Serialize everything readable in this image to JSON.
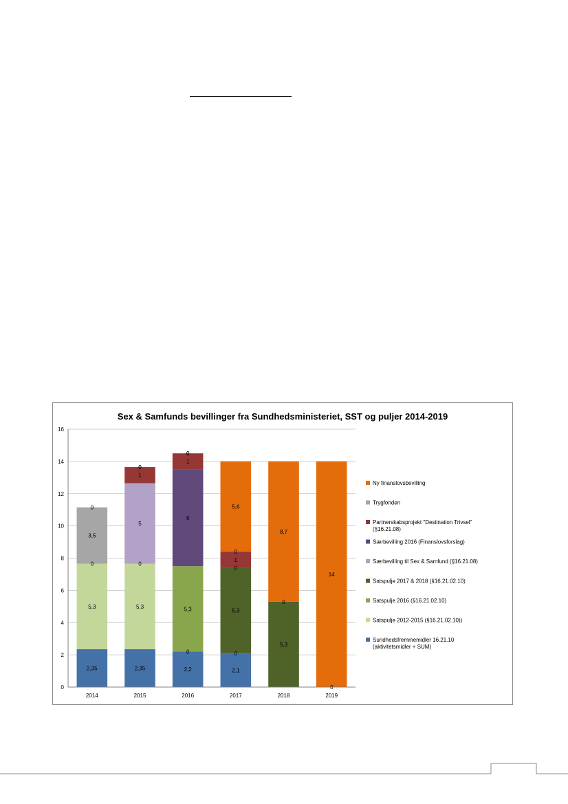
{
  "chart_data": {
    "type": "bar",
    "stacked": true,
    "title": "Sex & Samfunds bevillinger fra Sundhedsministeriet, SST og puljer 2014-2019",
    "xlabel": "",
    "ylabel": "",
    "ylim": [
      0,
      16
    ],
    "yticks": [
      "0",
      "2",
      "4",
      "6",
      "8",
      "10",
      "12",
      "14",
      "16"
    ],
    "categories": [
      "2014",
      "2015",
      "2016",
      "2017",
      "2018",
      "2019"
    ],
    "grid": true,
    "legend_position": "right",
    "series": [
      {
        "name": "Sundhedsfremmemidler 16.21.10 (aktivitetsmidler + SUM)",
        "color": "#4472a8",
        "values": [
          2.35,
          2.35,
          2.2,
          2.1,
          0,
          0
        ],
        "labels": [
          "2,35",
          "2,35",
          "2,2",
          "2,1",
          "",
          ""
        ]
      },
      {
        "name": "Satspulje 2012-2015 (§16.21.02.10))",
        "color": "#c4d79b",
        "values": [
          5.3,
          5.3,
          0,
          0,
          0,
          0
        ],
        "labels": [
          "5,3",
          "5,3",
          "0",
          "0",
          "",
          ""
        ]
      },
      {
        "name": "Satspulje 2016 (§16.21.02.10)",
        "color": "#8aa64c",
        "values": [
          0,
          0,
          5.3,
          0,
          0,
          0
        ],
        "labels": [
          "0",
          "0",
          "5,3",
          "",
          "",
          ""
        ]
      },
      {
        "name": "Satspulje 2017 & 2018 (§16.21.02.10)",
        "color": "#4f6228",
        "values": [
          0,
          0,
          0,
          5.3,
          5.3,
          0
        ],
        "labels": [
          "",
          "",
          "",
          "5,3",
          "5,3",
          "0"
        ]
      },
      {
        "name": "Særbevilling til Sex & Samfund (§16.21.08)",
        "color": "#b3a2c7",
        "values": [
          0,
          5,
          0,
          0,
          0,
          0
        ],
        "labels": [
          "",
          "5",
          "",
          "0",
          "0",
          ""
        ]
      },
      {
        "name": "Særbevilling 2016 (Finanslovsforslag)",
        "color": "#60497a",
        "values": [
          0,
          0,
          6,
          0,
          0,
          0
        ],
        "labels": [
          "",
          "",
          "6",
          "",
          "",
          ""
        ]
      },
      {
        "name": "Partnerskabsprojekt \"Destination Trivsel\" (§16.21.08)",
        "color": "#953735",
        "values": [
          0,
          1,
          1,
          1,
          0,
          0
        ],
        "labels": [
          "",
          "1",
          "1",
          "1",
          "",
          ""
        ]
      },
      {
        "name": "Trygfonden",
        "color": "#a6a6a6",
        "values": [
          3.5,
          0,
          0,
          0,
          0,
          0
        ],
        "labels": [
          "3,5",
          "0",
          "0",
          "0",
          "",
          ""
        ]
      },
      {
        "name": "Ny finanslovsbevilling",
        "color": "#e46c0a",
        "values": [
          0,
          0,
          0,
          5.6,
          8.7,
          14
        ],
        "labels": [
          "0",
          "0",
          "0",
          "5,6",
          "8,7",
          "14"
        ]
      }
    ]
  }
}
